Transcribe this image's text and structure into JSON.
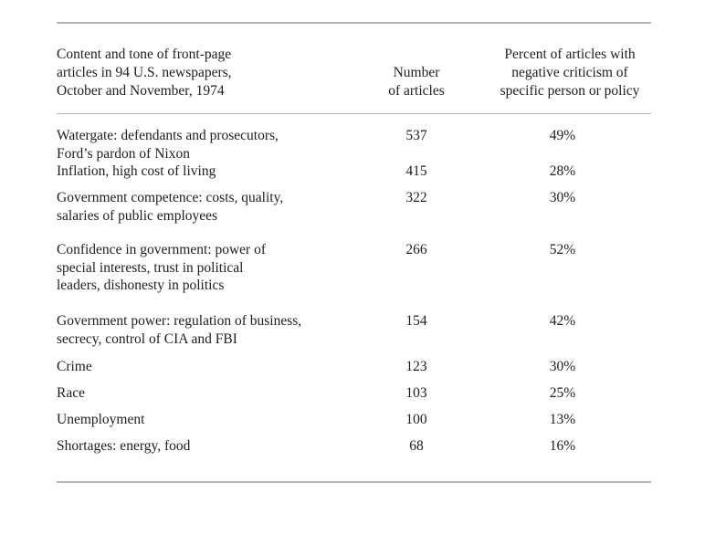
{
  "table": {
    "headers": {
      "topic": "Content and tone of front-page\narticles in 94 U.S. newspapers,\nOctober and November, 1974",
      "count": "Number\nof articles",
      "percent": "Percent of articles with\nnegative criticism of\nspecific person or policy"
    },
    "rows": [
      {
        "topic": "Watergate: defendants and prosecutors,\nFord’s pardon of Nixon",
        "count": "537",
        "percent": "49%"
      },
      {
        "topic": "Inflation, high cost of living",
        "count": "415",
        "percent": "28%"
      },
      {
        "topic": "Government competence: costs, quality,\nsalaries of public employees",
        "count": "322",
        "percent": "30%"
      },
      {
        "topic": "Confidence in government: power of\nspecial interests, trust in political\nleaders, dishonesty in politics",
        "count": "266",
        "percent": "52%"
      },
      {
        "topic": "Government power: regulation of business,\nsecrecy, control of CIA and FBI",
        "count": "154",
        "percent": "42%"
      },
      {
        "topic": "Crime",
        "count": "123",
        "percent": "30%"
      },
      {
        "topic": "Race",
        "count": "103",
        "percent": "25%"
      },
      {
        "topic": "Unemployment",
        "count": "100",
        "percent": "13%"
      },
      {
        "topic": "Shortages: energy, food",
        "count": "68",
        "percent": "16%"
      }
    ]
  }
}
